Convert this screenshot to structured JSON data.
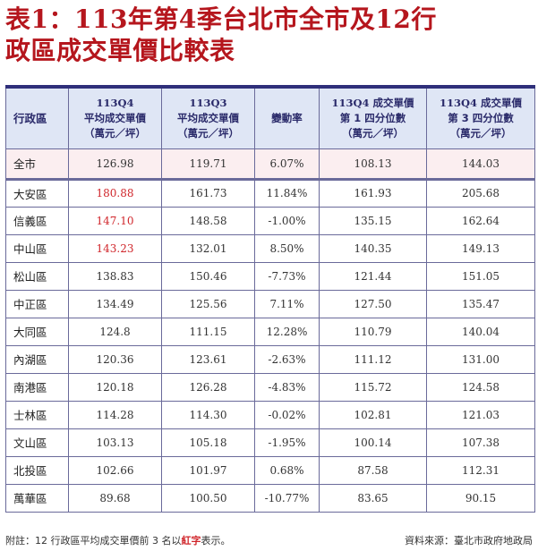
{
  "title": {
    "line1": "表1：113年第4季台北市全市及12行",
    "line2": "政區成交單價比較表"
  },
  "headers": [
    [
      "行政區"
    ],
    [
      "113Q4",
      "平均成交單價",
      "（萬元／坪）"
    ],
    [
      "113Q3",
      "平均成交單價",
      "（萬元／坪）"
    ],
    [
      "變動率"
    ],
    [
      "113Q4 成交單價",
      "第 1 四分位數",
      "（萬元／坪）"
    ],
    [
      "113Q4 成交單價",
      "第 3 四分位數",
      "（萬元／坪）"
    ]
  ],
  "total_row": [
    "全市",
    "126.98",
    "119.71",
    "6.07%",
    "108.13",
    "144.03"
  ],
  "rows": [
    {
      "cells": [
        "大安區",
        "180.88",
        "161.73",
        "11.84%",
        "161.93",
        "205.68"
      ],
      "highlight": true
    },
    {
      "cells": [
        "信義區",
        "147.10",
        "148.58",
        "-1.00%",
        "135.15",
        "162.64"
      ],
      "highlight": true
    },
    {
      "cells": [
        "中山區",
        "143.23",
        "132.01",
        "8.50%",
        "140.35",
        "149.13"
      ],
      "highlight": true
    },
    {
      "cells": [
        "松山區",
        "138.83",
        "150.46",
        "-7.73%",
        "121.44",
        "151.05"
      ],
      "highlight": false
    },
    {
      "cells": [
        "中正區",
        "134.49",
        "125.56",
        "7.11%",
        "127.50",
        "135.47"
      ],
      "highlight": false
    },
    {
      "cells": [
        "大同區",
        "124.8",
        "111.15",
        "12.28%",
        "110.79",
        "140.04"
      ],
      "highlight": false
    },
    {
      "cells": [
        "內湖區",
        "120.36",
        "123.61",
        "-2.63%",
        "111.12",
        "131.00"
      ],
      "highlight": false
    },
    {
      "cells": [
        "南港區",
        "120.18",
        "126.28",
        "-4.83%",
        "115.72",
        "124.58"
      ],
      "highlight": false
    },
    {
      "cells": [
        "士林區",
        "114.28",
        "114.30",
        "-0.02%",
        "102.81",
        "121.03"
      ],
      "highlight": false
    },
    {
      "cells": [
        "文山區",
        "103.13",
        "105.18",
        "-1.95%",
        "100.14",
        "107.38"
      ],
      "highlight": false
    },
    {
      "cells": [
        "北投區",
        "102.66",
        "101.97",
        "0.68%",
        "87.58",
        "112.31"
      ],
      "highlight": false
    },
    {
      "cells": [
        "萬華區",
        "89.68",
        "100.50",
        "-10.77%",
        "83.65",
        "90.15"
      ],
      "highlight": false
    }
  ],
  "footnote": {
    "prefix": "附註：12 行政區平均成交單價前 3 名以",
    "red_word": "紅字",
    "suffix": "表示。"
  },
  "source": "資料來源：臺北市政府地政局",
  "colors": {
    "title": "#b5161d",
    "highlight": "#d0262b",
    "header_bg": "#dfe6f5",
    "total_bg": "#fbeef0"
  }
}
